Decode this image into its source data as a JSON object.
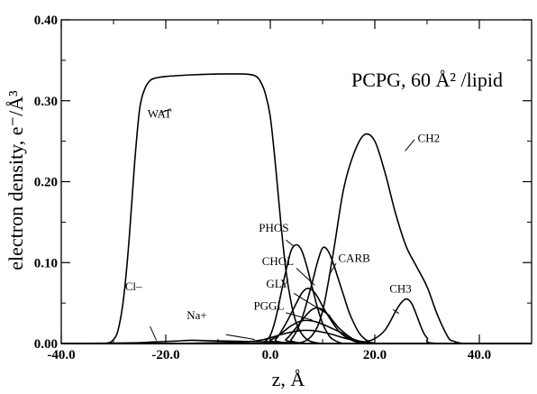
{
  "chart_data": {
    "type": "line",
    "title": "PCPG, 60 Å² /lipid",
    "xlabel": "z, Å",
    "ylabel": "electron density, e⁻/Å³",
    "xlim": [
      -40,
      50
    ],
    "ylim": [
      0,
      0.4
    ],
    "x_ticks": [
      "-40.0",
      "-20.0",
      "0.0",
      "20.0",
      "40.0"
    ],
    "y_ticks": [
      "0.00",
      "0.10",
      "0.20",
      "0.30",
      "0.40"
    ],
    "grid": false,
    "legend": "none",
    "series": [
      {
        "name": "WAT",
        "x": [
          -40,
          -32,
          -30,
          -29,
          -28,
          -27,
          -26,
          -25,
          -24,
          -23,
          -22,
          -20,
          -15,
          -10,
          -5,
          -3,
          -2,
          -1,
          0,
          1,
          2,
          3,
          4,
          5,
          6,
          7,
          8,
          10,
          12,
          15,
          20
        ],
        "y": [
          0,
          0,
          0.005,
          0.02,
          0.06,
          0.13,
          0.22,
          0.29,
          0.315,
          0.325,
          0.328,
          0.33,
          0.332,
          0.333,
          0.333,
          0.331,
          0.325,
          0.31,
          0.28,
          0.22,
          0.15,
          0.09,
          0.05,
          0.025,
          0.012,
          0.005,
          0.002,
          0,
          0,
          0,
          0
        ]
      },
      {
        "name": "CH2",
        "x": [
          -40,
          0,
          5,
          8,
          10,
          12,
          14,
          16,
          18,
          20,
          22,
          24,
          26,
          28,
          30,
          32,
          34,
          35,
          37,
          40,
          50
        ],
        "y": [
          0,
          0,
          0,
          0.01,
          0.04,
          0.11,
          0.19,
          0.235,
          0.258,
          0.25,
          0.21,
          0.16,
          0.12,
          0.095,
          0.07,
          0.035,
          0.008,
          0.003,
          0,
          0,
          0
        ]
      },
      {
        "name": "CH3",
        "x": [
          -40,
          15,
          18,
          20,
          22,
          24,
          25,
          26,
          27,
          28,
          29,
          30,
          32,
          50
        ],
        "y": [
          0,
          0,
          0.002,
          0.006,
          0.017,
          0.04,
          0.05,
          0.055,
          0.05,
          0.035,
          0.018,
          0.007,
          0,
          0
        ]
      },
      {
        "name": "PHOS",
        "x": [
          -40,
          -3,
          -1,
          0,
          1,
          2,
          3,
          4,
          5,
          6,
          7,
          8,
          9,
          10,
          11,
          12,
          14,
          16,
          50
        ],
        "y": [
          0,
          0,
          0.003,
          0.01,
          0.03,
          0.06,
          0.09,
          0.115,
          0.122,
          0.115,
          0.095,
          0.07,
          0.045,
          0.025,
          0.012,
          0.005,
          0,
          0,
          0
        ]
      },
      {
        "name": "CARB",
        "x": [
          -40,
          2,
          4,
          6,
          8,
          9,
          10,
          11,
          12,
          13,
          14,
          15,
          16,
          17,
          18,
          19,
          20,
          50
        ],
        "y": [
          0,
          0,
          0.005,
          0.03,
          0.075,
          0.1,
          0.118,
          0.115,
          0.1,
          0.08,
          0.06,
          0.04,
          0.025,
          0.013,
          0.006,
          0.002,
          0,
          0
        ]
      },
      {
        "name": "CHOL",
        "x": [
          -40,
          -1,
          1,
          3,
          5,
          6,
          7,
          8,
          9,
          10,
          11,
          12,
          13,
          14,
          15,
          16,
          18,
          20,
          50
        ],
        "y": [
          0,
          0,
          0.005,
          0.025,
          0.05,
          0.062,
          0.068,
          0.066,
          0.058,
          0.046,
          0.035,
          0.025,
          0.016,
          0.01,
          0.006,
          0.003,
          0,
          0,
          0
        ]
      },
      {
        "name": "GLY",
        "x": [
          -40,
          1,
          3,
          5,
          7,
          8,
          9,
          10,
          11,
          12,
          13,
          14,
          15,
          16,
          17,
          18,
          20,
          50
        ],
        "y": [
          0,
          0,
          0.005,
          0.02,
          0.036,
          0.042,
          0.044,
          0.042,
          0.036,
          0.028,
          0.02,
          0.014,
          0.009,
          0.005,
          0.003,
          0.001,
          0,
          0
        ]
      },
      {
        "name": "PGGL",
        "x": [
          -40,
          -2,
          0,
          2,
          4,
          6,
          8,
          10,
          12,
          14,
          15,
          16,
          17,
          18,
          20,
          22,
          50
        ],
        "y": [
          0,
          0,
          0.004,
          0.012,
          0.022,
          0.028,
          0.028,
          0.024,
          0.018,
          0.012,
          0.008,
          0.005,
          0.003,
          0.001,
          0,
          0,
          0
        ]
      },
      {
        "name": "Na+",
        "x": [
          -40,
          -20,
          -10,
          -5,
          -2,
          0,
          2,
          4,
          6,
          8,
          10,
          12,
          14,
          16,
          18,
          20,
          50
        ],
        "y": [
          0,
          0,
          0.001,
          0.002,
          0.004,
          0.007,
          0.011,
          0.014,
          0.016,
          0.016,
          0.014,
          0.011,
          0.007,
          0.004,
          0.002,
          0,
          0
        ]
      },
      {
        "name": "Cl-",
        "x": [
          -40,
          -30,
          -25,
          -22,
          -18,
          -15,
          -12,
          -8,
          -4,
          0,
          4,
          10,
          50
        ],
        "y": [
          0,
          0.0005,
          0.001,
          0.002,
          0.003,
          0.004,
          0.0035,
          0.003,
          0.0025,
          0.002,
          0.001,
          0,
          0
        ]
      }
    ],
    "annotations": [
      {
        "text": "WAT"
      },
      {
        "text": "CH2"
      },
      {
        "text": "CH3"
      },
      {
        "text": "PHOS"
      },
      {
        "text": "CARB"
      },
      {
        "text": "CHOL"
      },
      {
        "text": "GLY"
      },
      {
        "text": "PGGL"
      },
      {
        "text": "Na+"
      },
      {
        "text": "Cl–"
      }
    ]
  }
}
